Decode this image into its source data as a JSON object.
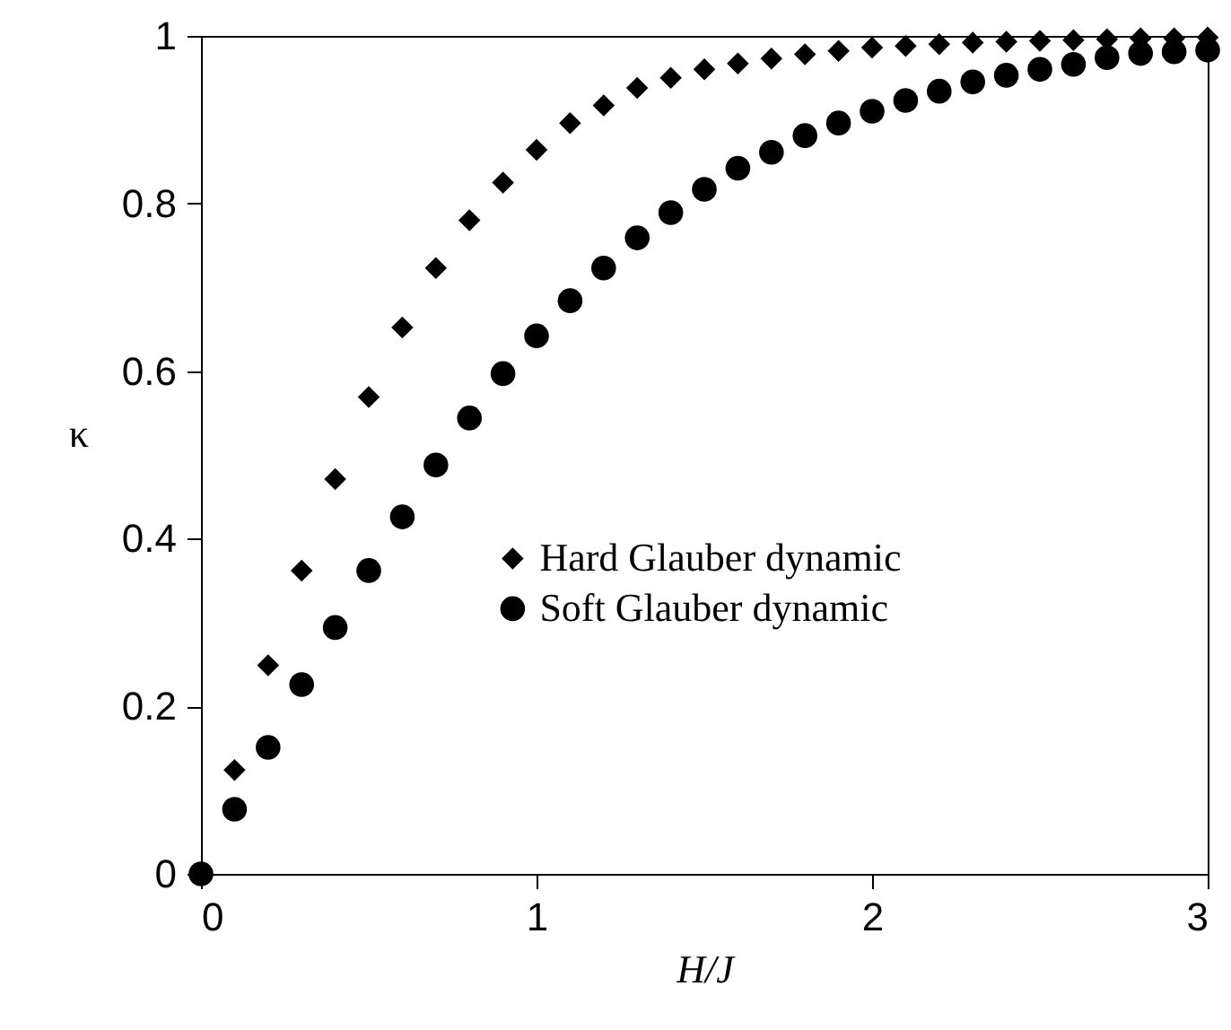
{
  "chart_data": {
    "type": "scatter",
    "xlabel": "H/J",
    "ylabel": "κ",
    "xlim": [
      0,
      3
    ],
    "xticks": [
      0,
      1,
      2,
      3
    ],
    "ylim": [
      0,
      1
    ],
    "yticks": [
      0,
      0.2,
      0.4,
      0.6,
      0.8,
      1
    ],
    "legend": "right",
    "grid": false,
    "series": [
      {
        "name": "Hard Glauber dynamic",
        "color": "#000000",
        "marker": "diamond",
        "x": [
          0.1,
          0.2,
          0.3,
          0.4,
          0.5,
          0.6,
          0.7,
          0.8,
          0.9,
          1.0,
          1.1,
          1.2,
          1.3,
          1.4,
          1.5,
          1.6,
          1.7,
          1.8,
          1.9,
          2.0,
          2.1,
          2.2,
          2.3,
          2.4,
          2.5,
          2.6,
          2.7,
          2.8,
          2.9,
          3.0
        ],
        "values": [
          0.124,
          0.249,
          0.362,
          0.471,
          0.569,
          0.652,
          0.723,
          0.78,
          0.825,
          0.864,
          0.896,
          0.917,
          0.938,
          0.95,
          0.96,
          0.967,
          0.973,
          0.978,
          0.982,
          0.986,
          0.988,
          0.99,
          0.992,
          0.993,
          0.994,
          0.995,
          0.996,
          0.997,
          0.997,
          0.998
        ]
      },
      {
        "name": "Soft Glauber dynamic",
        "color": "#000000",
        "marker": "circle",
        "x": [
          0,
          0.1,
          0.2,
          0.3,
          0.4,
          0.5,
          0.6,
          0.7,
          0.8,
          0.9,
          1.0,
          1.1,
          1.2,
          1.3,
          1.4,
          1.5,
          1.6,
          1.7,
          1.8,
          1.9,
          2.0,
          2.1,
          2.2,
          2.3,
          2.4,
          2.5,
          2.6,
          2.7,
          2.8,
          2.9,
          3.0
        ],
        "values": [
          0,
          0.077,
          0.151,
          0.226,
          0.294,
          0.362,
          0.426,
          0.488,
          0.544,
          0.597,
          0.642,
          0.684,
          0.723,
          0.759,
          0.789,
          0.817,
          0.842,
          0.861,
          0.881,
          0.896,
          0.91,
          0.923,
          0.934,
          0.945,
          0.953,
          0.96,
          0.966,
          0.974,
          0.979,
          0.981,
          0.983
        ]
      }
    ]
  }
}
